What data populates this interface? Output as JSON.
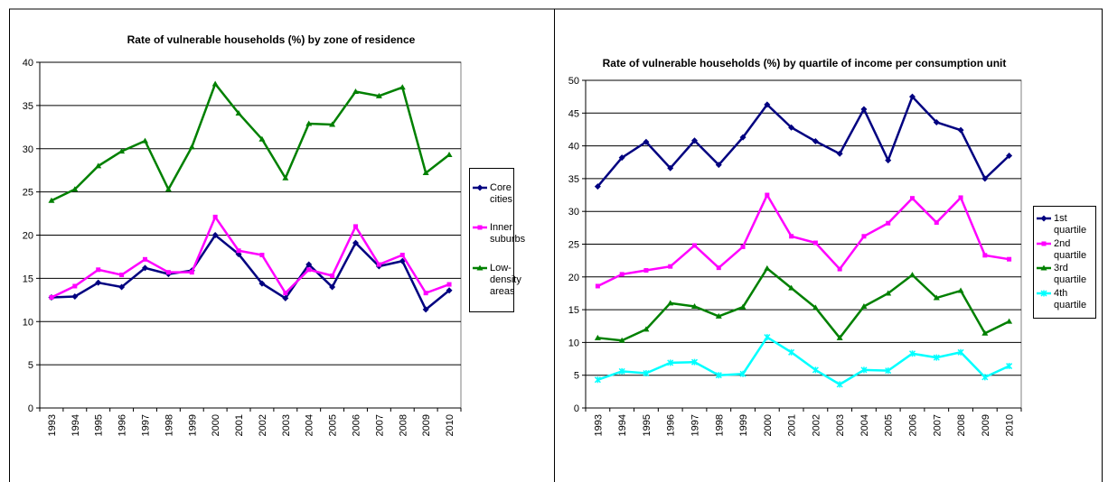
{
  "chart_data": [
    {
      "type": "line",
      "title": "Rate of vulnerable households (%) by zone of residence",
      "categories": [
        "1993",
        "1994",
        "1995",
        "1996",
        "1997",
        "1998",
        "1999",
        "2000",
        "2001",
        "2002",
        "2003",
        "2004",
        "2005",
        "2006",
        "2007",
        "2008",
        "2009",
        "2010"
      ],
      "ylim": [
        0,
        40
      ],
      "yticks": [
        0,
        5,
        10,
        15,
        20,
        25,
        30,
        35,
        40
      ],
      "grid": true,
      "series": [
        {
          "name": "Core cities",
          "color": "#000080",
          "marker": "diamond",
          "values": [
            12.8,
            12.9,
            14.5,
            14.0,
            16.2,
            15.5,
            15.9,
            20.0,
            17.8,
            14.4,
            12.7,
            16.6,
            14.0,
            19.1,
            16.4,
            17.0,
            11.4,
            13.6
          ]
        },
        {
          "name": "Inner suburbs",
          "color": "#ff00ff",
          "marker": "square",
          "values": [
            12.8,
            14.1,
            16.0,
            15.4,
            17.2,
            15.7,
            15.7,
            22.1,
            18.2,
            17.7,
            13.3,
            16.0,
            15.3,
            21.0,
            16.6,
            17.7,
            13.3,
            14.3
          ]
        },
        {
          "name": "Low-density areas",
          "color": "#008000",
          "marker": "triangle",
          "values": [
            24.0,
            25.3,
            28.0,
            29.7,
            30.9,
            25.3,
            30.2,
            37.5,
            34.1,
            31.1,
            26.6,
            32.9,
            32.8,
            36.6,
            36.1,
            37.1,
            27.2,
            29.3
          ]
        }
      ]
    },
    {
      "type": "line",
      "title": "Rate of vulnerable households (%) by quartile of income per consumption unit",
      "categories": [
        "1993",
        "1994",
        "1995",
        "1996",
        "1997",
        "1998",
        "1999",
        "2000",
        "2001",
        "2002",
        "2003",
        "2004",
        "2005",
        "2006",
        "2007",
        "2008",
        "2009",
        "2010"
      ],
      "ylim": [
        0,
        50
      ],
      "yticks": [
        0,
        5,
        10,
        15,
        20,
        25,
        30,
        35,
        40,
        45,
        50
      ],
      "grid": true,
      "series": [
        {
          "name": "1st quartile",
          "color": "#000080",
          "marker": "diamond",
          "values": [
            33.8,
            38.2,
            40.6,
            36.6,
            40.8,
            37.1,
            41.3,
            46.3,
            42.8,
            40.7,
            38.8,
            45.6,
            37.8,
            47.5,
            43.6,
            42.4,
            35.0,
            38.5
          ]
        },
        {
          "name": "2nd quartile",
          "color": "#ff00ff",
          "marker": "square",
          "values": [
            18.6,
            20.4,
            21.0,
            21.6,
            24.8,
            21.4,
            24.6,
            32.5,
            26.2,
            25.2,
            21.2,
            26.2,
            28.2,
            32.0,
            28.3,
            32.1,
            23.3,
            22.7
          ]
        },
        {
          "name": "3rd quartile",
          "color": "#008000",
          "marker": "triangle",
          "values": [
            10.7,
            10.3,
            12.0,
            16.0,
            15.5,
            14.0,
            15.4,
            21.3,
            18.3,
            15.3,
            10.7,
            15.5,
            17.5,
            20.3,
            16.8,
            17.9,
            11.4,
            13.2
          ]
        },
        {
          "name": "4th quartile",
          "color": "#00ffff",
          "marker": "x",
          "values": [
            4.3,
            5.6,
            5.3,
            6.9,
            7.0,
            5.0,
            5.2,
            10.8,
            8.5,
            5.8,
            3.6,
            5.8,
            5.7,
            8.3,
            7.7,
            8.5,
            4.7,
            6.4
          ]
        }
      ]
    }
  ]
}
